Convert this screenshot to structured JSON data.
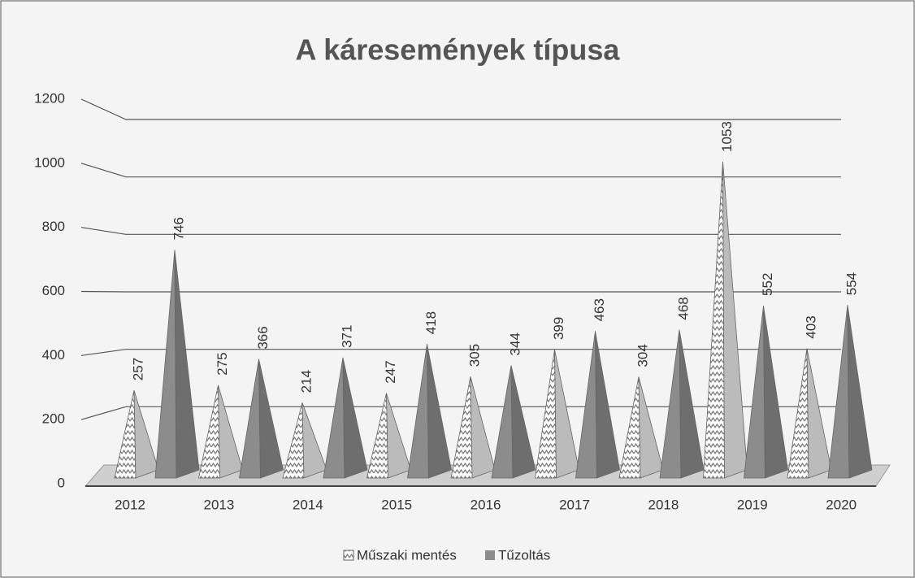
{
  "chart_data": {
    "type": "pyramid",
    "title": "A káresemények típusa",
    "categories": [
      "2012",
      "2013",
      "2014",
      "2015",
      "2016",
      "2017",
      "2018",
      "2019",
      "2020"
    ],
    "series": [
      {
        "name": "Műszaki mentés",
        "color": "#7a7a7a",
        "values": [
          257,
          275,
          214,
          247,
          305,
          399,
          304,
          1053,
          403
        ]
      },
      {
        "name": "Tűzoltás",
        "color": "#8c8c8c",
        "values": [
          746,
          366,
          371,
          418,
          344,
          463,
          468,
          552,
          554
        ]
      }
    ],
    "ylim": [
      0,
      1200
    ],
    "yticks": [
      0,
      200,
      400,
      600,
      800,
      1000,
      1200
    ],
    "grid": true,
    "legend": "bottom"
  }
}
